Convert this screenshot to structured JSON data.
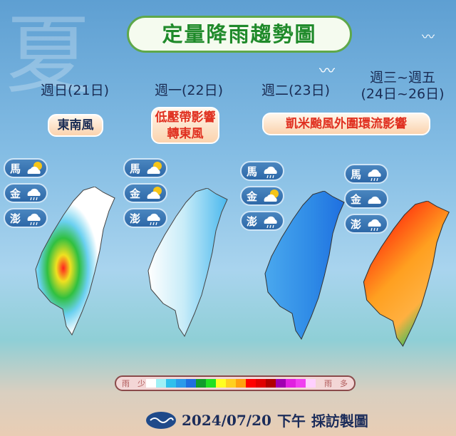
{
  "background_char": "夏",
  "title": "定量降雨趨勢圖",
  "columns": [
    {
      "day": "週日(21日)",
      "note": [
        "東南風"
      ],
      "note_color": "#1a2c54",
      "islands": [
        {
          "name": "馬",
          "weather": "partly-cloudy-icon"
        },
        {
          "name": "金",
          "weather": "rain-cloud-icon"
        },
        {
          "name": "澎",
          "weather": "rain-cloud-icon"
        }
      ]
    },
    {
      "day": "週一(22日)",
      "note": [
        "低壓帶影響",
        "轉東風"
      ],
      "note_color": "#e03020",
      "islands": [
        {
          "name": "馬",
          "weather": "partly-cloudy-icon"
        },
        {
          "name": "金",
          "weather": "partly-cloudy-icon"
        },
        {
          "name": "澎",
          "weather": "rain-cloud-icon"
        }
      ]
    },
    {
      "day": "週二(23日)",
      "note": [
        "凱米颱風外圍環流影響"
      ],
      "note_color": "#e03020",
      "islands": [
        {
          "name": "馬",
          "weather": "rain-cloud-icon"
        },
        {
          "name": "金",
          "weather": "partly-cloudy-icon"
        },
        {
          "name": "澎",
          "weather": "rain-cloud-icon"
        }
      ]
    },
    {
      "day": "週三~週五",
      "day2": "(24日~26日)",
      "islands": [
        {
          "name": "馬",
          "weather": "rain-cloud-icon"
        },
        {
          "name": "金",
          "weather": "cloudy-icon"
        },
        {
          "name": "澎",
          "weather": "rain-cloud-icon"
        }
      ]
    }
  ],
  "legend": {
    "low_label": "雨　少",
    "high_label": "雨　多",
    "colors": [
      "#ffffff",
      "#9ff0f5",
      "#30c0ec",
      "#2a9bea",
      "#1f6fe0",
      "#119c2c",
      "#22e022",
      "#ffff22",
      "#ffd020",
      "#ffa010",
      "#ff0000",
      "#e00000",
      "#b00000",
      "#a000b0",
      "#e020e0",
      "#f040f0",
      "#ffd0ff"
    ]
  },
  "footer": {
    "date": "2024/07/20",
    "period": "下午",
    "credit": "採訪製圖"
  }
}
